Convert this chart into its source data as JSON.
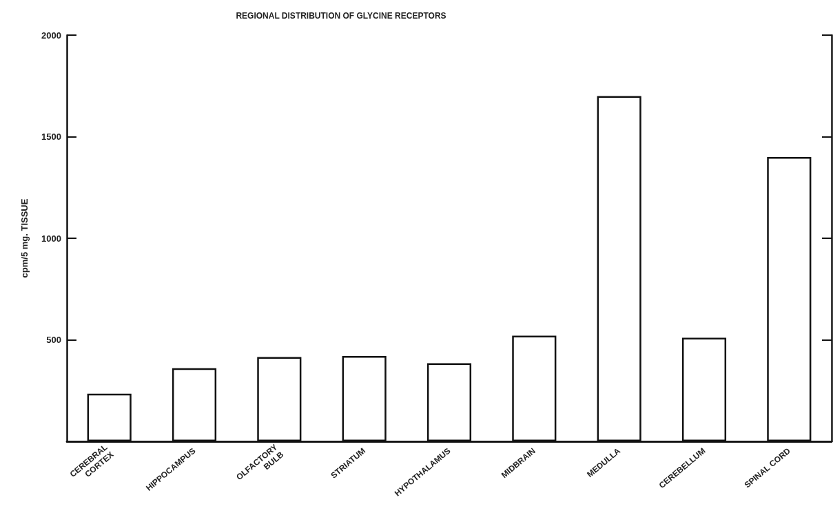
{
  "chart_data": {
    "type": "bar",
    "title": "REGIONAL DISTRIBUTION OF GLYCINE RECEPTORS",
    "ylabel": "cpm/5 mg. TISSUE",
    "categories": [
      "CEREBRAL\nCORTEX",
      "HIPPOCAMPUS",
      "OLFACTORY\nBULB",
      "STRIATUM",
      "HYPOTHALAMUS",
      "MIDBRAIN",
      "MEDULLA",
      "CEREBELLUM",
      "SPINAL CORD"
    ],
    "values": [
      235,
      360,
      415,
      420,
      385,
      520,
      1700,
      510,
      1400
    ],
    "color": "#ffffff",
    "ylim": [
      0,
      2000
    ],
    "yticks": [
      500,
      1000,
      1500,
      2000
    ]
  }
}
